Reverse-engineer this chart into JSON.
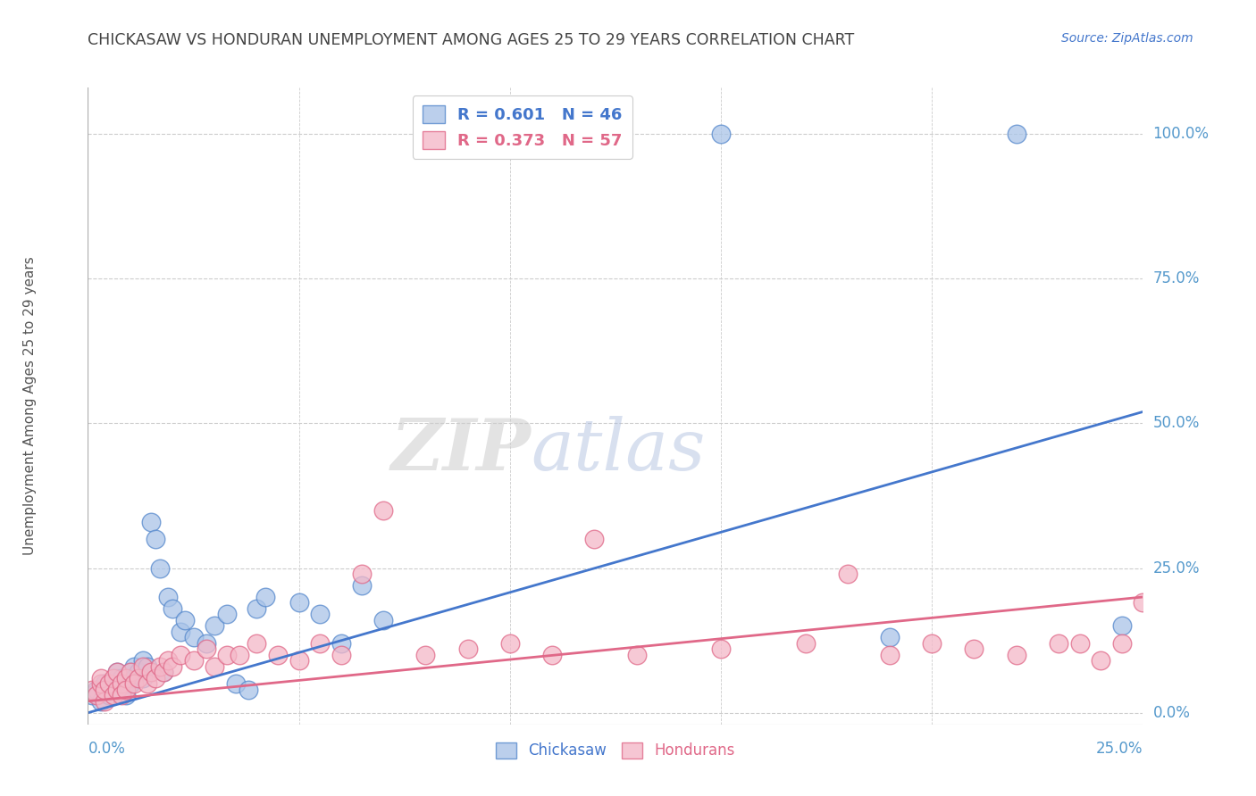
{
  "title": "CHICKASAW VS HONDURAN UNEMPLOYMENT AMONG AGES 25 TO 29 YEARS CORRELATION CHART",
  "source": "Source: ZipAtlas.com",
  "ylabel": "Unemployment Among Ages 25 to 29 years",
  "ytick_labels": [
    "0.0%",
    "25.0%",
    "50.0%",
    "75.0%",
    "100.0%"
  ],
  "ytick_values": [
    0.0,
    0.25,
    0.5,
    0.75,
    1.0
  ],
  "xtick_labels": [
    "0.0%",
    "25.0%"
  ],
  "xlim": [
    0.0,
    0.25
  ],
  "ylim": [
    -0.02,
    1.08
  ],
  "blue_color": "#aac4e8",
  "pink_color": "#f4b8c8",
  "blue_edge_color": "#5588cc",
  "pink_edge_color": "#e06888",
  "blue_line_color": "#4477cc",
  "pink_line_color": "#e06888",
  "grid_color": "#cccccc",
  "title_color": "#444444",
  "right_tick_color": "#5599cc",
  "legend_blue_R": "R = 0.601",
  "legend_blue_N": "N = 46",
  "legend_pink_R": "R = 0.373",
  "legend_pink_N": "N = 57",
  "blue_trend_x0": 0.0,
  "blue_trend_y0": 0.0,
  "blue_trend_x1": 0.25,
  "blue_trend_y1": 0.52,
  "pink_trend_x0": 0.0,
  "pink_trend_y0": 0.02,
  "pink_trend_x1": 0.25,
  "pink_trend_y1": 0.2,
  "chickasaw_x": [
    0.001,
    0.002,
    0.003,
    0.004,
    0.005,
    0.005,
    0.006,
    0.007,
    0.007,
    0.008,
    0.008,
    0.009,
    0.009,
    0.01,
    0.01,
    0.011,
    0.011,
    0.012,
    0.013,
    0.013,
    0.014,
    0.015,
    0.016,
    0.017,
    0.018,
    0.019,
    0.02,
    0.022,
    0.023,
    0.025,
    0.028,
    0.03,
    0.033,
    0.035,
    0.038,
    0.04,
    0.042,
    0.05,
    0.055,
    0.06,
    0.065,
    0.07,
    0.15,
    0.19,
    0.22,
    0.245
  ],
  "chickasaw_y": [
    0.03,
    0.04,
    0.02,
    0.05,
    0.03,
    0.05,
    0.04,
    0.06,
    0.07,
    0.04,
    0.06,
    0.03,
    0.05,
    0.07,
    0.05,
    0.08,
    0.06,
    0.07,
    0.09,
    0.06,
    0.08,
    0.33,
    0.3,
    0.25,
    0.07,
    0.2,
    0.18,
    0.14,
    0.16,
    0.13,
    0.12,
    0.15,
    0.17,
    0.05,
    0.04,
    0.18,
    0.2,
    0.19,
    0.17,
    0.12,
    0.22,
    0.16,
    1.0,
    0.13,
    1.0,
    0.15
  ],
  "honduran_x": [
    0.001,
    0.002,
    0.003,
    0.003,
    0.004,
    0.004,
    0.005,
    0.006,
    0.006,
    0.007,
    0.007,
    0.008,
    0.008,
    0.009,
    0.009,
    0.01,
    0.011,
    0.012,
    0.013,
    0.014,
    0.015,
    0.016,
    0.017,
    0.018,
    0.019,
    0.02,
    0.022,
    0.025,
    0.028,
    0.03,
    0.033,
    0.036,
    0.04,
    0.045,
    0.05,
    0.055,
    0.06,
    0.065,
    0.07,
    0.08,
    0.09,
    0.1,
    0.11,
    0.12,
    0.13,
    0.15,
    0.17,
    0.18,
    0.19,
    0.2,
    0.21,
    0.22,
    0.23,
    0.235,
    0.24,
    0.245,
    0.25
  ],
  "honduran_y": [
    0.04,
    0.03,
    0.05,
    0.06,
    0.02,
    0.04,
    0.05,
    0.03,
    0.06,
    0.04,
    0.07,
    0.05,
    0.03,
    0.06,
    0.04,
    0.07,
    0.05,
    0.06,
    0.08,
    0.05,
    0.07,
    0.06,
    0.08,
    0.07,
    0.09,
    0.08,
    0.1,
    0.09,
    0.11,
    0.08,
    0.1,
    0.1,
    0.12,
    0.1,
    0.09,
    0.12,
    0.1,
    0.24,
    0.35,
    0.1,
    0.11,
    0.12,
    0.1,
    0.3,
    0.1,
    0.11,
    0.12,
    0.24,
    0.1,
    0.12,
    0.11,
    0.1,
    0.12,
    0.12,
    0.09,
    0.12,
    0.19
  ],
  "watermark_zip": "ZIP",
  "watermark_atlas": "atlas"
}
